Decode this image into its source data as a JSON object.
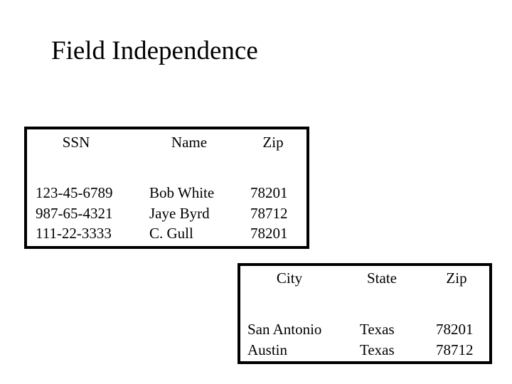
{
  "header": {
    "title": "Field Independence"
  },
  "table1": {
    "columns": [
      "SSN",
      "Name",
      "Zip"
    ],
    "rows": [
      [
        "123-45-6789",
        "Bob White",
        "78201"
      ],
      [
        "987-65-4321",
        "Jaye Byrd",
        "78712"
      ],
      [
        "111-22-3333",
        "C. Gull",
        "78201"
      ]
    ]
  },
  "table2": {
    "columns": [
      "City",
      "State",
      "Zip"
    ],
    "rows": [
      [
        "San Antonio",
        "Texas",
        "78201"
      ],
      [
        "Austin",
        "Texas",
        "78712"
      ]
    ]
  }
}
